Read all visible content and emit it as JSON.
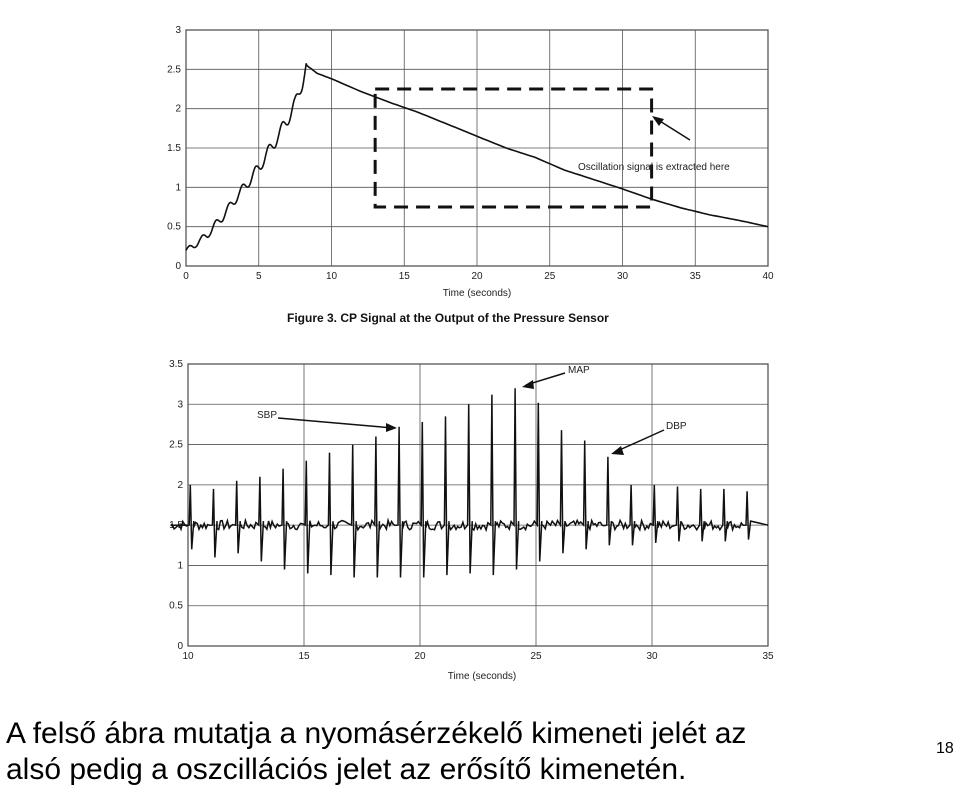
{
  "chart_data": [
    {
      "type": "line",
      "title": "",
      "caption_bold": "Figure 3.  CP Signal at the Output of the Pressure Sensor",
      "xlabel": "Time (seconds)",
      "ylabel": "",
      "xlim": [
        0,
        40
      ],
      "ylim": [
        0,
        3
      ],
      "xticks": [
        0,
        5,
        10,
        15,
        20,
        25,
        30,
        35,
        40
      ],
      "yticks": [
        0,
        0.5,
        1,
        1.5,
        2,
        2.5,
        3
      ],
      "ytick_labels": [
        "0",
        "0.5",
        "1",
        "1.5",
        "2",
        "2.5",
        "3"
      ],
      "grid": true,
      "annotation": "Oscillation signal is extracted here",
      "extraction_box": {
        "x": [
          13,
          32
        ],
        "y": [
          0.75,
          2.25
        ]
      },
      "series": [
        {
          "x": [
            0,
            0.5,
            1,
            1.5,
            2,
            2.5,
            3,
            3.5,
            4,
            4.5,
            5,
            5.5,
            6,
            6.5,
            7,
            7.5,
            8,
            8.3,
            9,
            10,
            12,
            14,
            16,
            18,
            20,
            22,
            24,
            26,
            28,
            30,
            32,
            34,
            36,
            38,
            40
          ],
          "y": [
            0.2,
            0.25,
            0.33,
            0.4,
            0.52,
            0.62,
            0.75,
            0.88,
            1.0,
            1.12,
            1.25,
            1.4,
            1.55,
            1.7,
            1.88,
            2.05,
            2.35,
            2.55,
            2.45,
            2.38,
            2.22,
            2.08,
            1.95,
            1.8,
            1.65,
            1.5,
            1.38,
            1.22,
            1.1,
            0.98,
            0.85,
            0.74,
            0.65,
            0.58,
            0.5
          ]
        }
      ]
    },
    {
      "type": "line",
      "title": "",
      "xlabel": "Time (seconds)",
      "ylabel": "",
      "xlim": [
        10,
        35
      ],
      "ylim": [
        0,
        3.5
      ],
      "xticks": [
        10,
        15,
        20,
        25,
        30,
        35
      ],
      "yticks": [
        0,
        0.5,
        1,
        1.5,
        2,
        2.5,
        3,
        3.5
      ],
      "ytick_labels": [
        "0",
        "0.5",
        "1",
        "1.5",
        "2",
        "2.5",
        "3",
        "3.5"
      ],
      "grid": true,
      "annotations": [
        "SBP",
        "MAP",
        "DBP"
      ],
      "baseline": 1.5,
      "series": [
        {
          "peak_times": [
            10.1,
            11.1,
            12.1,
            13.1,
            14.1,
            15.1,
            16.1,
            17.1,
            18.1,
            19.1,
            20.1,
            21.1,
            22.1,
            23.1,
            24.1,
            25.1,
            26.1,
            27.1,
            28.1,
            29.1,
            30.1,
            31.1,
            32.1,
            33.1,
            34.1
          ],
          "peak_values": [
            2.0,
            1.95,
            2.05,
            2.1,
            2.2,
            2.3,
            2.4,
            2.5,
            2.6,
            2.72,
            2.78,
            2.85,
            3.0,
            3.12,
            3.2,
            3.02,
            2.68,
            2.55,
            2.35,
            2.0,
            2.0,
            1.98,
            1.95,
            1.95,
            1.92
          ],
          "trough_values": [
            1.2,
            1.1,
            1.15,
            1.05,
            0.95,
            0.9,
            0.88,
            0.85,
            0.85,
            0.85,
            0.85,
            0.88,
            0.9,
            0.88,
            0.95,
            1.05,
            1.15,
            1.2,
            1.25,
            1.25,
            1.28,
            1.3,
            1.3,
            1.3,
            1.32
          ]
        }
      ]
    }
  ],
  "slide": {
    "line1": "A felső ábra mutatja a nyomásérzékelő kimeneti jelét az",
    "line2": "alsó pedig a oszcillációs jelet az erősítő kimenetén.",
    "page_number": "18"
  }
}
